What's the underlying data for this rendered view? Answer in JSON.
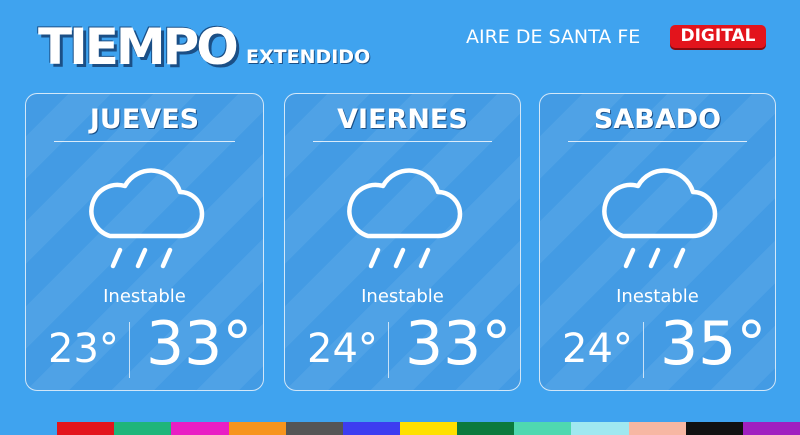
{
  "header": {
    "title": "TIEMPO",
    "subtitle": "EXTENDIDO",
    "brand": "AIRE DE SANTA FE",
    "badge": "DIGITAL"
  },
  "days": [
    {
      "name": "JUEVES",
      "condition": "Inestable",
      "min": "23°",
      "max": "33°"
    },
    {
      "name": "VIERNES",
      "condition": "Inestable",
      "min": "24°",
      "max": "33°"
    },
    {
      "name": "SABADO",
      "condition": "Inestable",
      "min": "24°",
      "max": "35°"
    }
  ]
}
